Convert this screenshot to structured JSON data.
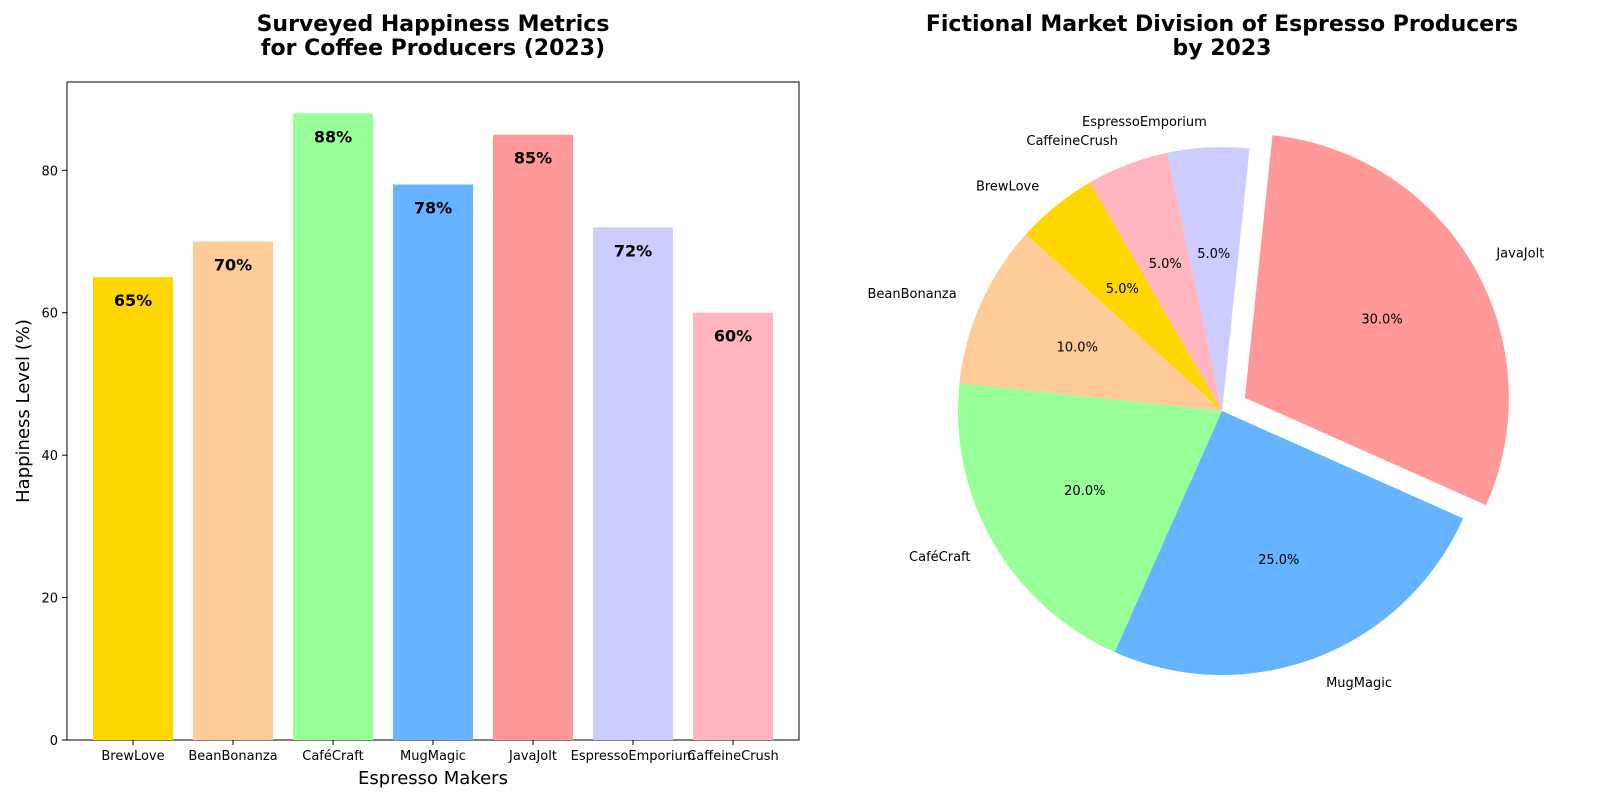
{
  "chart_data": [
    {
      "type": "bar",
      "title": "Surveyed Happiness Metrics\nfor Coffee Producers (2023)",
      "xlabel": "Espresso Makers",
      "ylabel": "Happiness Level (%)",
      "categories": [
        "BrewLove",
        "BeanBonanza",
        "CaféCraft",
        "MugMagic",
        "JavaJolt",
        "EspressoEmporium",
        "CaffeineCrush"
      ],
      "values": [
        65,
        70,
        88,
        78,
        85,
        72,
        60
      ],
      "data_labels": [
        "65%",
        "70%",
        "88%",
        "78%",
        "85%",
        "72%",
        "60%"
      ],
      "colors": [
        "#FFD700",
        "#FFCC99",
        "#99FF99",
        "#66B3FF",
        "#FF9999",
        "#CCCCFF",
        "#FFB6C1"
      ],
      "ylim": [
        0,
        92.4
      ],
      "yticks": [
        0,
        20,
        40,
        60,
        80
      ],
      "grid": false,
      "legend": "none"
    },
    {
      "type": "pie",
      "title": "Fictional Market Division of Espresso Producers\nby 2023",
      "labels": [
        "BrewLove",
        "BeanBonanza",
        "CaféCraft",
        "MugMagic",
        "JavaJolt",
        "EspressoEmporium",
        "CaffeineCrush"
      ],
      "values": [
        5,
        10,
        20,
        25,
        30,
        5,
        5
      ],
      "pct_labels": [
        "5.0%",
        "10.0%",
        "20.0%",
        "25.0%",
        "30.0%",
        "5.0%",
        "5.0%"
      ],
      "colors": [
        "#FFD700",
        "#FFCC99",
        "#99FF99",
        "#66B3FF",
        "#FF9999",
        "#CCCCFF",
        "#FFB6C1"
      ],
      "exploded": [
        false,
        false,
        false,
        false,
        true,
        false,
        false
      ],
      "start_angle_deg": 120,
      "direction": "counterclockwise",
      "legend": "none"
    }
  ]
}
